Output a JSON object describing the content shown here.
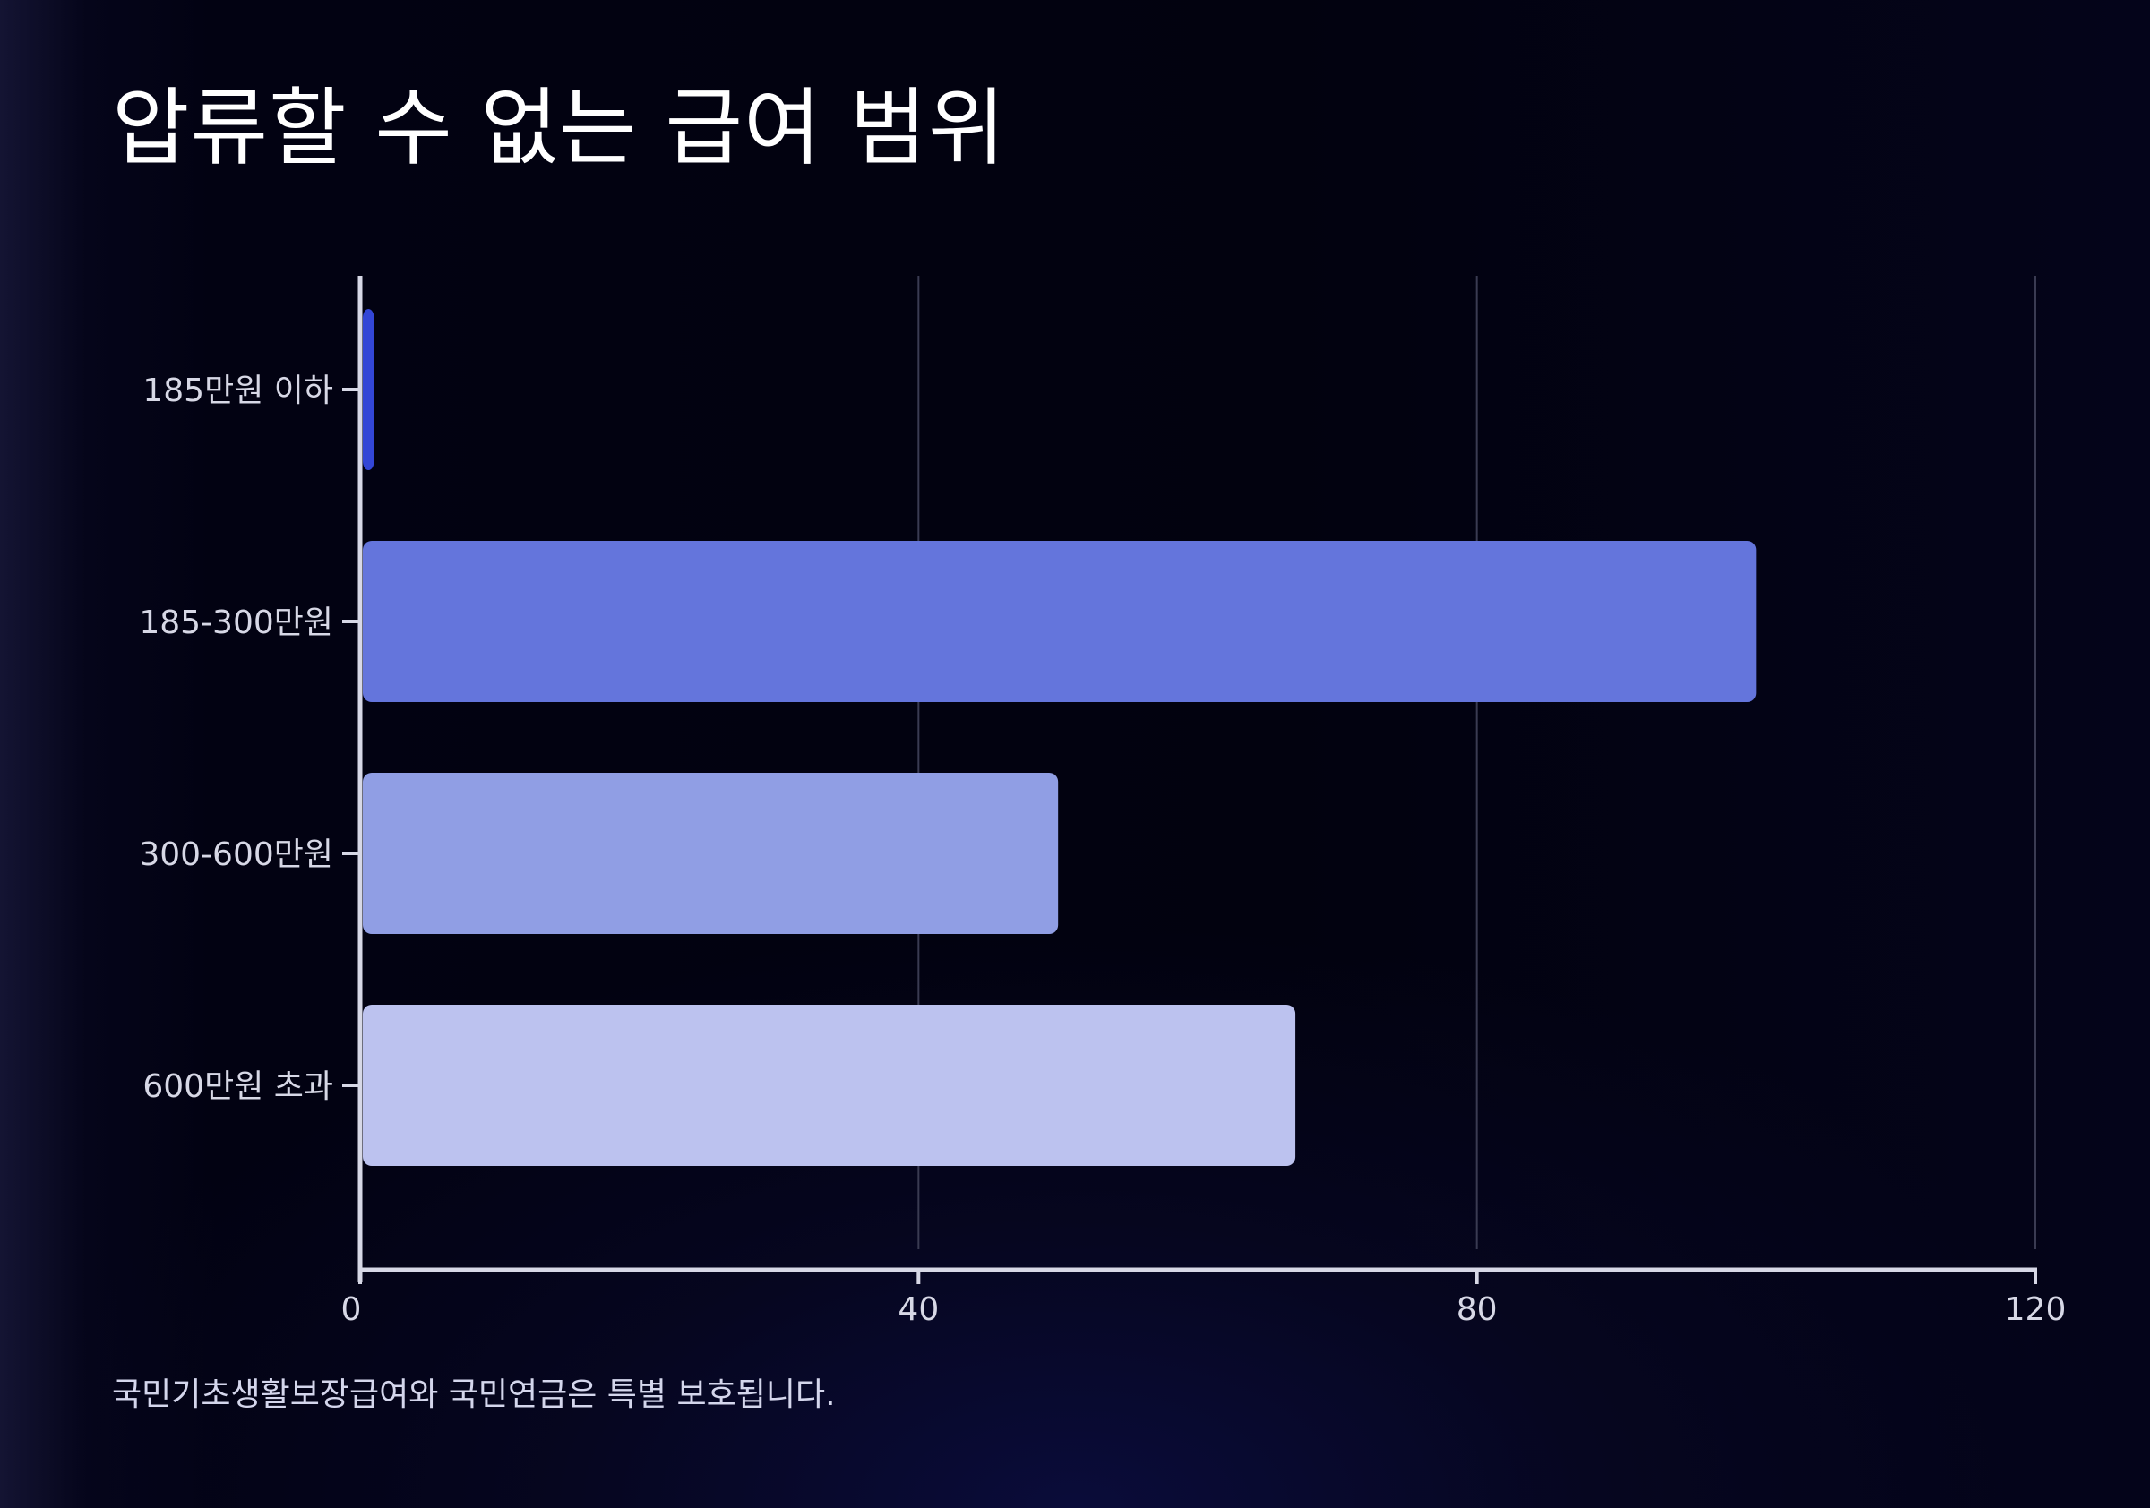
{
  "title": "압류할 수 없는 급여 범위",
  "footnote": "국민기초생활보장급여와 국민연금은 특별 보호됩니다.",
  "colors": {
    "background": "#02020f",
    "axis": "#d7d8e6",
    "grid": "#3a3b52",
    "label": "#d7d8e6"
  },
  "chart_data": {
    "type": "bar",
    "orientation": "horizontal",
    "title": "압류할 수 없는 급여 범위",
    "xlabel": "",
    "ylabel": "",
    "categories": [
      "185만원 이하",
      "185-300만원",
      "300-600만원",
      "600만원 초과"
    ],
    "values": [
      1,
      100,
      50,
      67
    ],
    "bar_colors": [
      "#3346d6",
      "#6475dc",
      "#909ee4",
      "#bcc2ef"
    ],
    "xlim": [
      0,
      120
    ],
    "xticks": [
      0,
      40,
      80,
      120
    ],
    "grid": true
  }
}
